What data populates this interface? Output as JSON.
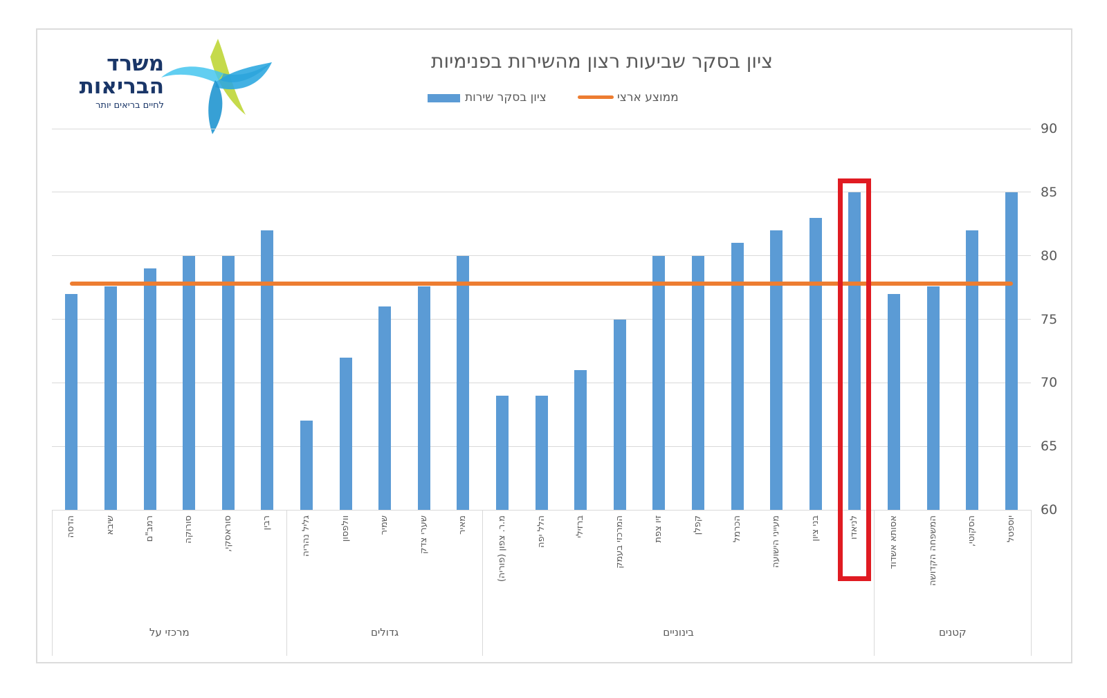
{
  "logo": {
    "title_line1": "משרד",
    "title_line2": "הבריאות",
    "tagline": "לחיים בריאים יותר",
    "text_color": "#1A3668"
  },
  "title": "ציון בסקר שביעות רצון מהשירות בפנימיות",
  "legend": [
    {
      "label": "ציון בסקר שירות",
      "type": "bar",
      "color": "#5B9BD5"
    },
    {
      "label": "ממוצע ארצי",
      "type": "line",
      "color": "#ED7D31"
    }
  ],
  "chart_data": {
    "type": "bar",
    "title": "ציון בסקר שביעות רצון מהשירות בפנימיות",
    "rtl": true,
    "ylim": [
      60,
      90
    ],
    "yticks": [
      60,
      65,
      70,
      75,
      80,
      85,
      90
    ],
    "grid": true,
    "legend_position": "top",
    "bar_color": "#5B9BD5",
    "average_line_color": "#ED7D31",
    "highlight_color": "#E01B22",
    "national_average": 77.8,
    "highlighted_category": "לניאדו",
    "groups": [
      {
        "name": "מרכזי על",
        "categories": [
          "הדסה",
          "שיבא",
          "רמב\"ם",
          "סורוקה",
          "סוראסקי,",
          "רבין"
        ],
        "values": [
          77,
          77.6,
          79,
          80,
          80,
          82
        ]
      },
      {
        "name": "גדולים",
        "categories": [
          "גליל נהריה",
          "וולפסון",
          "שמיר",
          "שערי צדק",
          "מאיר"
        ],
        "values": [
          67,
          72,
          76,
          77.6,
          80
        ]
      },
      {
        "name": "בינוניים",
        "categories": [
          "מ.ר. צפון (פוריה)",
          "הלל יפה",
          "ברזילי",
          "המרכזי בעמק",
          "זיו צפת",
          "קפלן",
          "הכרמל",
          "מעייני הישועה",
          "בני ציון",
          "לניאדו"
        ],
        "values": [
          69,
          69,
          71,
          75,
          80,
          80,
          81,
          82,
          83,
          85
        ]
      },
      {
        "name": "קטנים",
        "categories": [
          "אסותא אשדוד",
          "המשפחה הקדושה",
          "הסקוטי,",
          "יוספטל"
        ],
        "values": [
          77,
          77.6,
          82,
          85
        ]
      }
    ],
    "series": [
      {
        "name": "ציון בסקר שירות",
        "values": [
          77,
          77.6,
          79,
          80,
          80,
          82,
          67,
          72,
          76,
          77.6,
          80,
          69,
          69,
          71,
          75,
          80,
          80,
          81,
          82,
          83,
          85,
          77,
          77.6,
          82,
          85
        ]
      },
      {
        "name": "ממוצע ארצי",
        "value": 77.8
      }
    ]
  }
}
